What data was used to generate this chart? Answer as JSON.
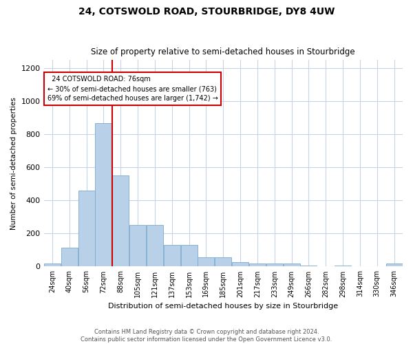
{
  "title": "24, COTSWOLD ROAD, STOURBRIDGE, DY8 4UW",
  "subtitle": "Size of property relative to semi-detached houses in Stourbridge",
  "xlabel": "Distribution of semi-detached houses by size in Stourbridge",
  "ylabel": "Number of semi-detached properties",
  "footer_line1": "Contains HM Land Registry data © Crown copyright and database right 2024.",
  "footer_line2": "Contains public sector information licensed under the Open Government Licence v3.0.",
  "property_label": "24 COTSWOLD ROAD: 76sqm",
  "pct_smaller": 30,
  "n_smaller": 763,
  "pct_larger": 69,
  "n_larger": 1742,
  "bin_labels": [
    "24sqm",
    "40sqm",
    "56sqm",
    "72sqm",
    "88sqm",
    "105sqm",
    "121sqm",
    "137sqm",
    "153sqm",
    "169sqm",
    "185sqm",
    "201sqm",
    "217sqm",
    "233sqm",
    "249sqm",
    "266sqm",
    "282sqm",
    "298sqm",
    "314sqm",
    "330sqm",
    "346sqm"
  ],
  "bar_heights": [
    18,
    115,
    460,
    870,
    550,
    250,
    250,
    130,
    130,
    58,
    58,
    28,
    20,
    18,
    18,
    6,
    0,
    6,
    0,
    0,
    18
  ],
  "bar_color": "#b8d0e8",
  "bar_edge_color": "#7aaad0",
  "vline_color": "#cc0000",
  "vline_x_index": 3.5,
  "annotation_box_color": "#cc0000",
  "ylim": [
    0,
    1250
  ],
  "yticks": [
    0,
    200,
    400,
    600,
    800,
    1000,
    1200
  ],
  "background_color": "#ffffff",
  "grid_color": "#c8d4e4"
}
